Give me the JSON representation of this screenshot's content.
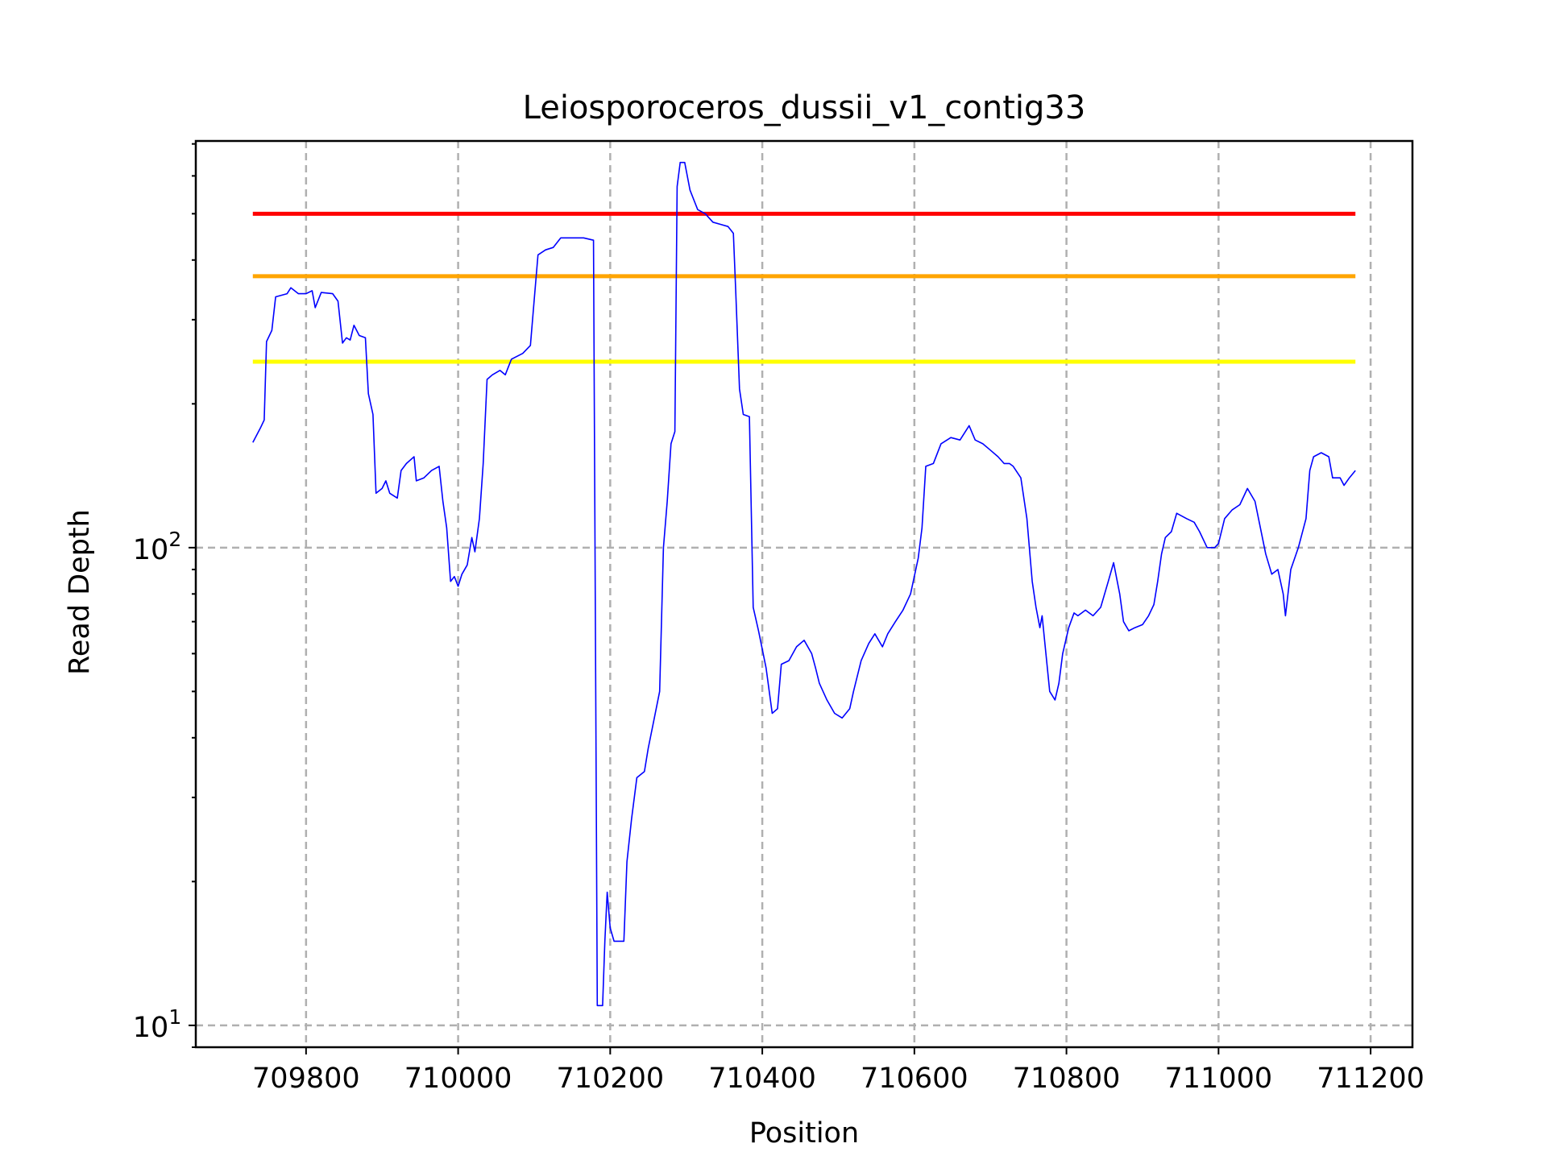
{
  "chart_data": {
    "type": "line",
    "title": "Leiosporoceros_dussii_v1_contig33",
    "xlabel": "Position",
    "ylabel": "Read Depth",
    "xlim": [
      709655,
      711255
    ],
    "ylim": [
      9.0,
      710
    ],
    "yscale": "log",
    "grid": true,
    "x_ticks": [
      709800,
      710000,
      710200,
      710400,
      710600,
      710800,
      711000,
      711200
    ],
    "x_tick_labels": [
      "709800",
      "710000",
      "710200",
      "710400",
      "710600",
      "710800",
      "711000",
      "711200"
    ],
    "y_ticks": [
      {
        "value": 10,
        "base": "10",
        "exp": "1"
      },
      {
        "value": 100,
        "base": "10",
        "exp": "2"
      }
    ],
    "thresholds": [
      {
        "value": 500,
        "color": "#ff0000"
      },
      {
        "value": 370,
        "color": "#ffa500"
      },
      {
        "value": 245,
        "color": "#ffff00"
      }
    ],
    "series": [
      {
        "color": "#0000ff",
        "points": [
          [
            709730,
            166
          ],
          [
            709740,
            178
          ],
          [
            709745,
            185
          ],
          [
            709748,
            270
          ],
          [
            709755,
            285
          ],
          [
            709760,
            335
          ],
          [
            709775,
            340
          ],
          [
            709780,
            350
          ],
          [
            709790,
            340
          ],
          [
            709800,
            340
          ],
          [
            709808,
            345
          ],
          [
            709812,
            318
          ],
          [
            709820,
            342
          ],
          [
            709835,
            340
          ],
          [
            709842,
            328
          ],
          [
            709848,
            268
          ],
          [
            709853,
            275
          ],
          [
            709858,
            272
          ],
          [
            709863,
            292
          ],
          [
            709870,
            278
          ],
          [
            709878,
            275
          ],
          [
            709882,
            210
          ],
          [
            709888,
            190
          ],
          [
            709892,
            130
          ],
          [
            709900,
            133
          ],
          [
            709905,
            138
          ],
          [
            709910,
            130
          ],
          [
            709920,
            127
          ],
          [
            709925,
            145
          ],
          [
            709932,
            150
          ],
          [
            709942,
            155
          ],
          [
            709945,
            138
          ],
          [
            709955,
            140
          ],
          [
            709965,
            145
          ],
          [
            709975,
            148
          ],
          [
            709980,
            125
          ],
          [
            709985,
            110
          ],
          [
            709990,
            85
          ],
          [
            709995,
            87
          ],
          [
            710000,
            83
          ],
          [
            710005,
            88
          ],
          [
            710012,
            92
          ],
          [
            710018,
            105
          ],
          [
            710022,
            98
          ],
          [
            710028,
            115
          ],
          [
            710033,
            150
          ],
          [
            710038,
            225
          ],
          [
            710045,
            230
          ],
          [
            710055,
            235
          ],
          [
            710062,
            230
          ],
          [
            710070,
            248
          ],
          [
            710085,
            255
          ],
          [
            710095,
            265
          ],
          [
            710100,
            330
          ],
          [
            710105,
            410
          ],
          [
            710115,
            420
          ],
          [
            710125,
            425
          ],
          [
            710135,
            445
          ],
          [
            710150,
            445
          ],
          [
            710165,
            445
          ],
          [
            710178,
            440
          ],
          [
            710183,
            11.0
          ],
          [
            710190,
            11.0
          ],
          [
            710193,
            15
          ],
          [
            710196,
            19
          ],
          [
            710200,
            16
          ],
          [
            710205,
            15
          ],
          [
            710210,
            15
          ],
          [
            710218,
            15
          ],
          [
            710222,
            22
          ],
          [
            710228,
            27
          ],
          [
            710235,
            33
          ],
          [
            710245,
            34
          ],
          [
            710250,
            38
          ],
          [
            710258,
            44
          ],
          [
            710265,
            50
          ],
          [
            710270,
            100
          ],
          [
            710275,
            125
          ],
          [
            710280,
            165
          ],
          [
            710285,
            175
          ],
          [
            710288,
            570
          ],
          [
            710292,
            640
          ],
          [
            710298,
            640
          ],
          [
            710305,
            560
          ],
          [
            710315,
            510
          ],
          [
            710325,
            500
          ],
          [
            710335,
            480
          ],
          [
            710345,
            475
          ],
          [
            710355,
            470
          ],
          [
            710362,
            455
          ],
          [
            710365,
            345
          ],
          [
            710370,
            215
          ],
          [
            710375,
            190
          ],
          [
            710383,
            188
          ],
          [
            710388,
            75
          ],
          [
            710395,
            67
          ],
          [
            710405,
            56
          ],
          [
            710413,
            45
          ],
          [
            710420,
            46
          ],
          [
            710425,
            57
          ],
          [
            710435,
            58
          ],
          [
            710445,
            62
          ],
          [
            710455,
            64
          ],
          [
            710465,
            60
          ],
          [
            710470,
            56
          ],
          [
            710475,
            52
          ],
          [
            710485,
            48
          ],
          [
            710495,
            45
          ],
          [
            710505,
            44
          ],
          [
            710515,
            46
          ],
          [
            710520,
            50
          ],
          [
            710530,
            58
          ],
          [
            710540,
            63
          ],
          [
            710548,
            66
          ],
          [
            710558,
            62
          ],
          [
            710565,
            66
          ],
          [
            710575,
            70
          ],
          [
            710585,
            74
          ],
          [
            710595,
            80
          ],
          [
            710605,
            95
          ],
          [
            710610,
            110
          ],
          [
            710615,
            148
          ],
          [
            710625,
            150
          ],
          [
            710635,
            165
          ],
          [
            710648,
            170
          ],
          [
            710660,
            168
          ],
          [
            710672,
            180
          ],
          [
            710680,
            168
          ],
          [
            710690,
            165
          ],
          [
            710700,
            160
          ],
          [
            710710,
            155
          ],
          [
            710718,
            150
          ],
          [
            710725,
            150
          ],
          [
            710730,
            148
          ],
          [
            710740,
            140
          ],
          [
            710748,
            115
          ],
          [
            710755,
            85
          ],
          [
            710760,
            75
          ],
          [
            710765,
            68
          ],
          [
            710768,
            72
          ],
          [
            710773,
            60
          ],
          [
            710778,
            50
          ],
          [
            710785,
            48
          ],
          [
            710790,
            52
          ],
          [
            710795,
            60
          ],
          [
            710803,
            68
          ],
          [
            710810,
            73
          ],
          [
            710815,
            72
          ],
          [
            710825,
            74
          ],
          [
            710835,
            72
          ],
          [
            710845,
            75
          ],
          [
            710855,
            85
          ],
          [
            710862,
            93
          ],
          [
            710870,
            80
          ],
          [
            710875,
            70
          ],
          [
            710882,
            67
          ],
          [
            710890,
            68
          ],
          [
            710900,
            69
          ],
          [
            710908,
            72
          ],
          [
            710915,
            76
          ],
          [
            710920,
            85
          ],
          [
            710925,
            97
          ],
          [
            710930,
            105
          ],
          [
            710938,
            108
          ],
          [
            710945,
            118
          ],
          [
            710958,
            115
          ],
          [
            710968,
            113
          ],
          [
            710975,
            108
          ],
          [
            710985,
            100
          ],
          [
            710995,
            100
          ],
          [
            711000,
            102
          ],
          [
            711008,
            115
          ],
          [
            711018,
            120
          ],
          [
            711028,
            123
          ],
          [
            711038,
            133
          ],
          [
            711048,
            125
          ],
          [
            711055,
            110
          ],
          [
            711062,
            97
          ],
          [
            711070,
            88
          ],
          [
            711078,
            90
          ],
          [
            711085,
            80
          ],
          [
            711088,
            72
          ],
          [
            711095,
            90
          ],
          [
            711105,
            100
          ],
          [
            711115,
            115
          ],
          [
            711120,
            145
          ],
          [
            711125,
            155
          ],
          [
            711135,
            158
          ],
          [
            711145,
            155
          ],
          [
            711150,
            140
          ],
          [
            711160,
            140
          ],
          [
            711165,
            135
          ],
          [
            711172,
            140
          ],
          [
            711180,
            145
          ]
        ]
      }
    ]
  }
}
